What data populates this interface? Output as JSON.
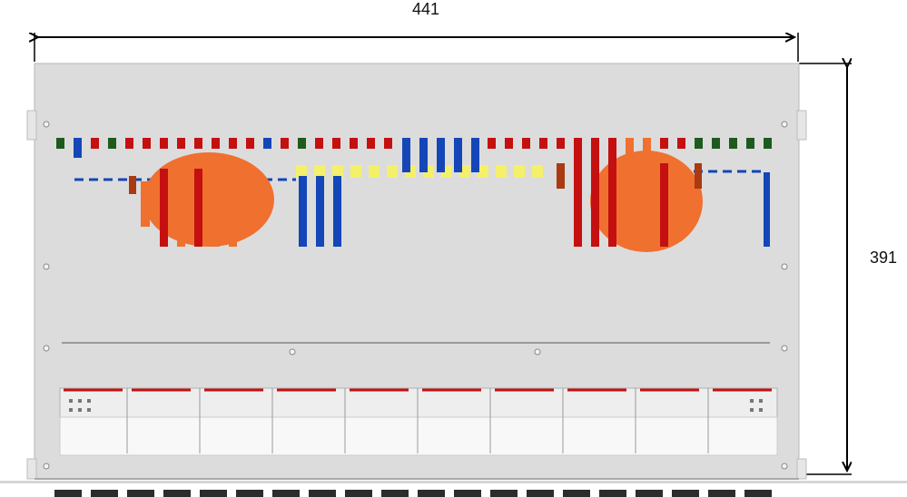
{
  "dimensions": {
    "width_label": "441",
    "height_label": "391"
  },
  "colors": {
    "panel": "#dcdcdc",
    "panel_edge": "#b9b9b9",
    "red": "#c41010",
    "orange": "#f07030",
    "blue": "#1446b8",
    "yellow": "#f4f06a",
    "green": "#1e5a1e",
    "arrow": "#000000"
  }
}
